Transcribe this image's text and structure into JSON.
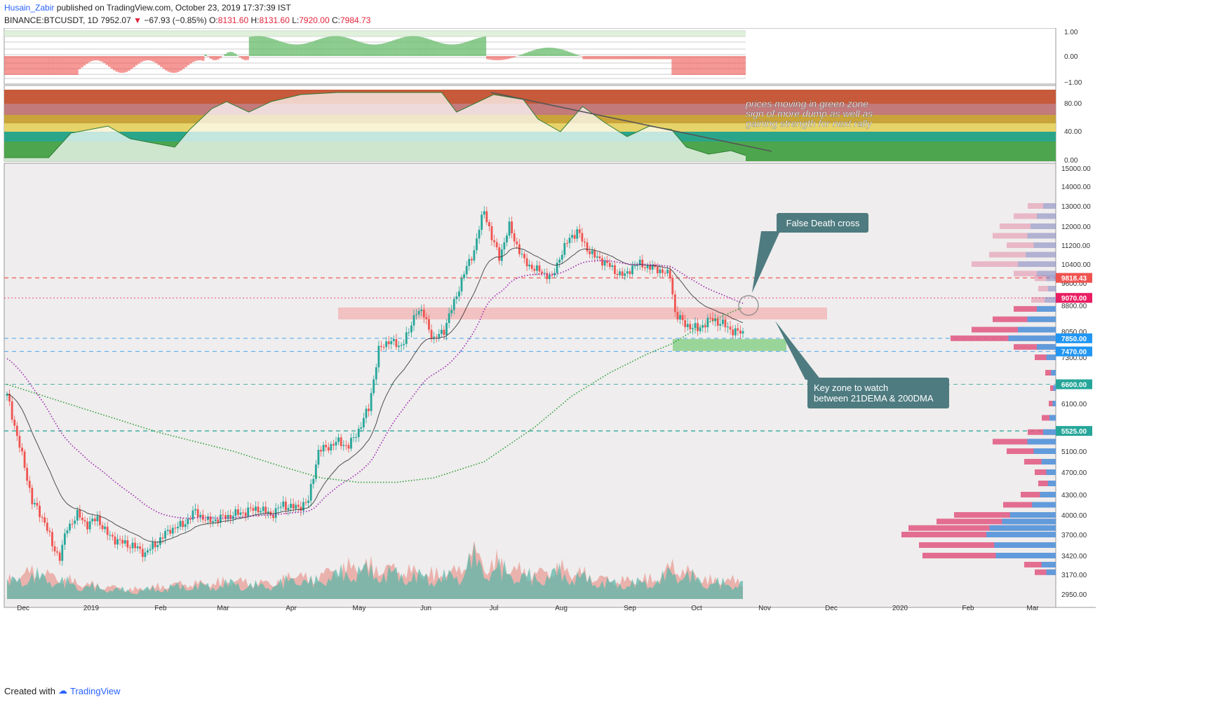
{
  "header": {
    "author": "Husain_Zabir",
    "published": " published on TradingView.com, October 23, 2019 17:37:39 IST",
    "symbol": "BINANCE:BTCUSDT, 1D",
    "last": "7952.07",
    "change": "−67.93 (−0.85%)",
    "o_label": "O:",
    "o": "8131.60",
    "h_label": "H:",
    "h": "8131.60",
    "l_label": "L:",
    "l": "7920.00",
    "c_label": "C:",
    "c": "7984.73"
  },
  "footer": {
    "created": "Created with",
    "brand": "TradingView"
  },
  "annotations": {
    "rsi_note": [
      "prices moving in green zone",
      "sign of more dump as well as",
      "gaining strength for next rally"
    ],
    "death_cross": "False Death cross",
    "key_zone": [
      "Key zone to watch",
      "between 21DEMA & 200DMA"
    ]
  },
  "colors": {
    "bull": "#26a69a",
    "bear": "#ef5350",
    "ema21": "#333333",
    "ma_purple": "#9c27b0",
    "ma200": "#2e9e3a",
    "resist_zone": "#f2b8b8",
    "support_zone": "#8fd18f",
    "callout": "#4e7b80"
  },
  "chart_data": [
    {
      "type": "area",
      "panel": "oscillator",
      "y_ticks": [
        "1.00",
        "0.00",
        "−1.00"
      ]
    },
    {
      "type": "area",
      "panel": "rsi",
      "y_ticks": [
        "80.00",
        "40.00",
        "0.00"
      ]
    },
    {
      "type": "candlestick",
      "panel": "price",
      "x_ticks": [
        "Dec",
        "2019",
        "Feb",
        "Mar",
        "Apr",
        "May",
        "Jun",
        "Jul",
        "Aug",
        "Sep",
        "Oct",
        "Nov",
        "Dec",
        "2020",
        "Feb",
        "Mar"
      ],
      "y_ticks": [
        "15000.00",
        "14000.00",
        "13000.00",
        "12000.00",
        "11200.00",
        "10400.00",
        "9600.00",
        "8800.00",
        "8050.00",
        "7300.00",
        "6100.00",
        "5100.00",
        "4700.00",
        "4300.00",
        "4000.00",
        "3700.00",
        "3420.00",
        "3170.00",
        "2950.00"
      ],
      "ylim": [
        2950,
        15000
      ],
      "price_levels": [
        {
          "value": 9818.43,
          "label": "9818.43",
          "color": "#ef5350",
          "style": "dashed"
        },
        {
          "value": 9070.0,
          "label": "9070.00",
          "color": "#e91e63",
          "style": "dotted"
        },
        {
          "value": 7850.0,
          "label": "7850.00",
          "color": "#2196f3",
          "style": "dashed"
        },
        {
          "value": 7470.0,
          "label": "7470.00",
          "color": "#2196f3",
          "style": "dashed"
        },
        {
          "value": 6600.0,
          "label": "6600.00",
          "color": "#26a69a",
          "style": "dashed"
        },
        {
          "value": 5525.0,
          "label": "5525.00",
          "color": "#26a69a",
          "style": "dashed"
        }
      ],
      "series": [
        {
          "name": "close",
          "values": [
            [
              0,
              6300
            ],
            [
              5,
              5200
            ],
            [
              10,
              4200
            ],
            [
              15,
              3900
            ],
            [
              18,
              3550
            ],
            [
              21,
              3400
            ],
            [
              24,
              3800
            ],
            [
              28,
              4000
            ],
            [
              32,
              3850
            ],
            [
              36,
              3950
            ],
            [
              40,
              3700
            ],
            [
              45,
              3600
            ],
            [
              50,
              3550
            ],
            [
              55,
              3450
            ],
            [
              60,
              3600
            ],
            [
              65,
              3780
            ],
            [
              70,
              3850
            ],
            [
              75,
              4050
            ],
            [
              80,
              3900
            ],
            [
              85,
              3950
            ],
            [
              90,
              4000
            ],
            [
              95,
              4050
            ],
            [
              100,
              4100
            ],
            [
              105,
              4000
            ],
            [
              110,
              4150
            ],
            [
              115,
              4100
            ],
            [
              120,
              4200
            ],
            [
              124,
              5100
            ],
            [
              128,
              5200
            ],
            [
              132,
              5300
            ],
            [
              136,
              5200
            ],
            [
              140,
              5550
            ],
            [
              144,
              6000
            ],
            [
              148,
              7500
            ],
            [
              152,
              7800
            ],
            [
              156,
              7600
            ],
            [
              160,
              8000
            ],
            [
              163,
              8700
            ],
            [
              166,
              8500
            ],
            [
              170,
              7800
            ],
            [
              174,
              8100
            ],
            [
              178,
              8900
            ],
            [
              182,
              10000
            ],
            [
              186,
              11000
            ],
            [
              190,
              12800
            ],
            [
              193,
              11500
            ],
            [
              196,
              10700
            ],
            [
              200,
              12000
            ],
            [
              203,
              11200
            ],
            [
              206,
              10500
            ],
            [
              210,
              10200
            ],
            [
              214,
              10000
            ],
            [
              217,
              9800
            ],
            [
              220,
              10700
            ],
            [
              224,
              11500
            ],
            [
              227,
              11800
            ],
            [
              230,
              11200
            ],
            [
              234,
              10700
            ],
            [
              238,
              10500
            ],
            [
              242,
              10100
            ],
            [
              246,
              9900
            ],
            [
              249,
              10300
            ],
            [
              252,
              10400
            ],
            [
              256,
              10250
            ],
            [
              260,
              10150
            ],
            [
              264,
              9900
            ],
            [
              266,
              8600
            ],
            [
              269,
              8300
            ],
            [
              272,
              8200
            ],
            [
              275,
              8100
            ],
            [
              278,
              8300
            ],
            [
              281,
              8400
            ],
            [
              284,
              8300
            ],
            [
              287,
              8150
            ],
            [
              290,
              8050
            ],
            [
              293,
              7980
            ]
          ]
        },
        {
          "name": "volume",
          "values": [
            [
              0,
              0.3
            ],
            [
              10,
              0.45
            ],
            [
              20,
              0.35
            ],
            [
              30,
              0.25
            ],
            [
              40,
              0.2
            ],
            [
              50,
              0.15
            ],
            [
              60,
              0.2
            ],
            [
              70,
              0.25
            ],
            [
              80,
              0.25
            ],
            [
              90,
              0.3
            ],
            [
              100,
              0.25
            ],
            [
              110,
              0.3
            ],
            [
              115,
              0.45
            ],
            [
              120,
              0.3
            ],
            [
              125,
              0.4
            ],
            [
              130,
              0.45
            ],
            [
              140,
              0.55
            ],
            [
              150,
              0.5
            ],
            [
              160,
              0.45
            ],
            [
              170,
              0.4
            ],
            [
              180,
              0.45
            ],
            [
              185,
              0.8
            ],
            [
              190,
              0.55
            ],
            [
              195,
              0.6
            ],
            [
              200,
              0.5
            ],
            [
              210,
              0.4
            ],
            [
              220,
              0.5
            ],
            [
              230,
              0.4
            ],
            [
              240,
              0.3
            ],
            [
              250,
              0.3
            ],
            [
              260,
              0.35
            ],
            [
              265,
              0.55
            ],
            [
              270,
              0.45
            ],
            [
              280,
              0.3
            ],
            [
              290,
              0.3
            ]
          ]
        }
      ]
    }
  ]
}
